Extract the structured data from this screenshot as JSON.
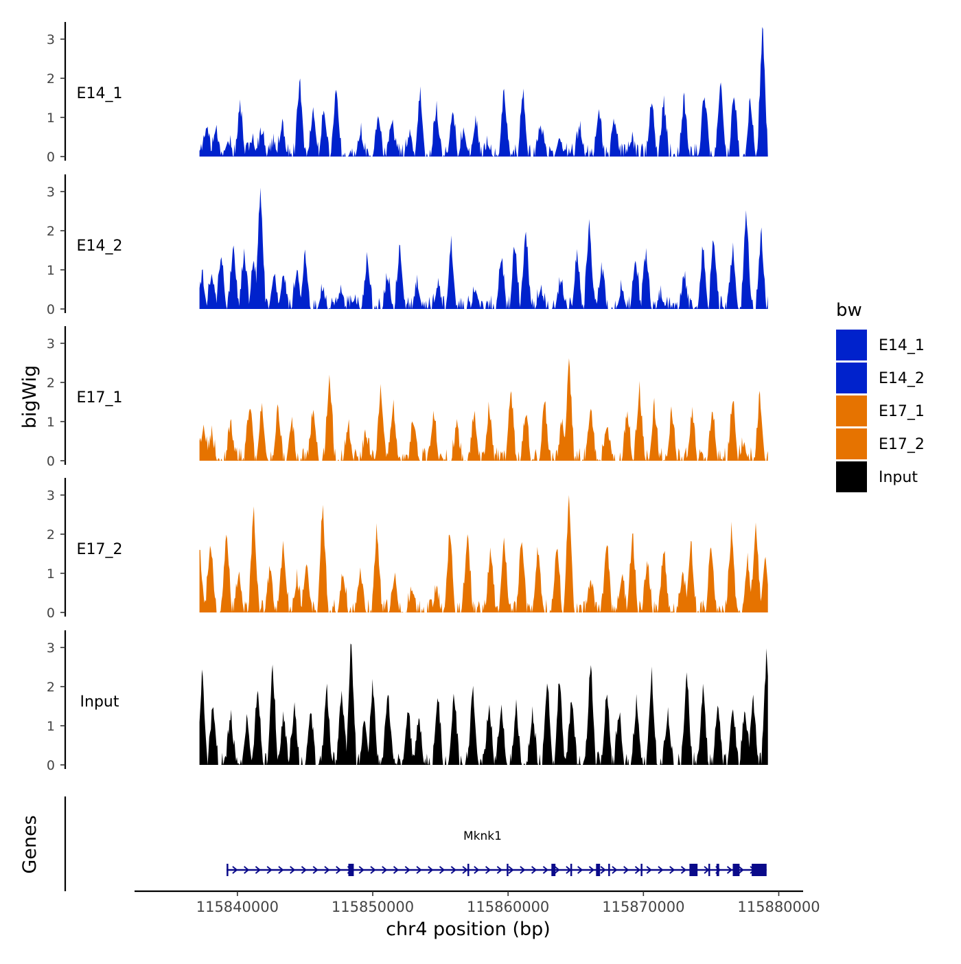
{
  "chart_data": {
    "type": "area",
    "chromosome": "chr4",
    "xlabel": "chr4 position (bp)",
    "ylabel": "bigWig",
    "genes_label": "Genes",
    "xlim": [
      115832400,
      115881800
    ],
    "data_range": [
      115837200,
      115879200
    ],
    "x_ticks": [
      115840000,
      115850000,
      115860000,
      115870000,
      115880000
    ],
    "x_tick_labels": [
      "115840000",
      "115850000",
      "115860000",
      "115870000",
      "115880000"
    ],
    "ylim": [
      0,
      3.4
    ],
    "y_ticks": [
      0,
      1,
      2,
      3
    ],
    "y_tick_labels": [
      "0",
      "1",
      "2",
      "3"
    ],
    "legend": {
      "title": "bw",
      "position": "right",
      "entries": [
        {
          "label": "E14_1",
          "color": "#0022cc"
        },
        {
          "label": "E14_2",
          "color": "#0022cc"
        },
        {
          "label": "E17_1",
          "color": "#e67300"
        },
        {
          "label": "E17_2",
          "color": "#e67300"
        },
        {
          "label": "Input",
          "color": "#000000"
        }
      ]
    },
    "series": [
      {
        "name": "E14_1",
        "color": "#0022cc",
        "peaks": [
          [
            115837300,
            0.2
          ],
          [
            115837700,
            0.7
          ],
          [
            115838400,
            0.7
          ],
          [
            115839300,
            0.4
          ],
          [
            115840200,
            1.2
          ],
          [
            115841100,
            0.4
          ],
          [
            115841800,
            0.6
          ],
          [
            115842700,
            0.3
          ],
          [
            115843300,
            0.8
          ],
          [
            115844600,
            1.9
          ],
          [
            115845600,
            1.2
          ],
          [
            115846400,
            1.2
          ],
          [
            115847300,
            1.8
          ],
          [
            115849100,
            0.6
          ],
          [
            115850400,
            1.0
          ],
          [
            115851400,
            0.9
          ],
          [
            115852700,
            0.5
          ],
          [
            115853500,
            1.6
          ],
          [
            115854700,
            1.2
          ],
          [
            115855900,
            1.2
          ],
          [
            115856700,
            0.6
          ],
          [
            115857600,
            0.9
          ],
          [
            115858500,
            0.3
          ],
          [
            115859700,
            1.7
          ],
          [
            115861100,
            1.6
          ],
          [
            115862400,
            0.8
          ],
          [
            115863800,
            0.5
          ],
          [
            115865300,
            0.7
          ],
          [
            115866700,
            1.2
          ],
          [
            115867900,
            0.9
          ],
          [
            115869100,
            0.4
          ],
          [
            115870600,
            1.4
          ],
          [
            115871500,
            1.3
          ],
          [
            115873000,
            1.4
          ],
          [
            115874500,
            1.6
          ],
          [
            115875700,
            2.0
          ],
          [
            115876700,
            1.6
          ],
          [
            115877900,
            1.4
          ],
          [
            115878800,
            3.3
          ]
        ]
      },
      {
        "name": "E14_2",
        "color": "#0022cc",
        "peaks": [
          [
            115837400,
            0.8
          ],
          [
            115838100,
            0.9
          ],
          [
            115838800,
            1.4
          ],
          [
            115839700,
            1.6
          ],
          [
            115840500,
            1.4
          ],
          [
            115841200,
            1.2
          ],
          [
            115841700,
            3.1
          ],
          [
            115842700,
            0.9
          ],
          [
            115843400,
            0.9
          ],
          [
            115844400,
            1.0
          ],
          [
            115845000,
            1.4
          ],
          [
            115846300,
            0.5
          ],
          [
            115847600,
            0.4
          ],
          [
            115848600,
            0.2
          ],
          [
            115849600,
            1.3
          ],
          [
            115851100,
            0.8
          ],
          [
            115852000,
            1.6
          ],
          [
            115853300,
            0.6
          ],
          [
            115854800,
            0.5
          ],
          [
            115855800,
            1.6
          ],
          [
            115857600,
            0.5
          ],
          [
            115859500,
            1.3
          ],
          [
            115860500,
            1.6
          ],
          [
            115861300,
            2.0
          ],
          [
            115862400,
            0.5
          ],
          [
            115863900,
            0.7
          ],
          [
            115865100,
            1.4
          ],
          [
            115866000,
            2.2
          ],
          [
            115866900,
            1.0
          ],
          [
            115868400,
            0.5
          ],
          [
            115869400,
            1.3
          ],
          [
            115870200,
            1.4
          ],
          [
            115871300,
            0.3
          ],
          [
            115873000,
            0.8
          ],
          [
            115874400,
            1.5
          ],
          [
            115875200,
            1.8
          ],
          [
            115876600,
            1.5
          ],
          [
            115877600,
            2.4
          ],
          [
            115878700,
            1.9
          ]
        ]
      },
      {
        "name": "E17_1",
        "color": "#e67300",
        "peaks": [
          [
            115837500,
            0.9
          ],
          [
            115838100,
            0.6
          ],
          [
            115839500,
            0.9
          ],
          [
            115840900,
            1.4
          ],
          [
            115841800,
            1.4
          ],
          [
            115843000,
            1.3
          ],
          [
            115844000,
            1.0
          ],
          [
            115845600,
            1.3
          ],
          [
            115846800,
            2.2
          ],
          [
            115848200,
            0.8
          ],
          [
            115849500,
            0.6
          ],
          [
            115850600,
            1.8
          ],
          [
            115851500,
            1.4
          ],
          [
            115853000,
            1.0
          ],
          [
            115854500,
            1.2
          ],
          [
            115856200,
            0.8
          ],
          [
            115857500,
            1.2
          ],
          [
            115858600,
            1.3
          ],
          [
            115860200,
            1.8
          ],
          [
            115861300,
            1.2
          ],
          [
            115862700,
            1.4
          ],
          [
            115864000,
            1.0
          ],
          [
            115864500,
            2.5
          ],
          [
            115866100,
            1.4
          ],
          [
            115867300,
            0.9
          ],
          [
            115868800,
            1.2
          ],
          [
            115869700,
            1.8
          ],
          [
            115870800,
            1.3
          ],
          [
            115872100,
            1.2
          ],
          [
            115873600,
            1.2
          ],
          [
            115875100,
            1.3
          ],
          [
            115876600,
            1.6
          ],
          [
            115877400,
            0.4
          ],
          [
            115878600,
            1.6
          ]
        ]
      },
      {
        "name": "E17_2",
        "color": "#e67300",
        "peaks": [
          [
            115837200,
            1.6
          ],
          [
            115838000,
            1.8
          ],
          [
            115839200,
            2.1
          ],
          [
            115840100,
            1.0
          ],
          [
            115841200,
            2.6
          ],
          [
            115842400,
            1.0
          ],
          [
            115843400,
            1.7
          ],
          [
            115844400,
            0.8
          ],
          [
            115845100,
            1.3
          ],
          [
            115846300,
            2.7
          ],
          [
            115847800,
            1.0
          ],
          [
            115849100,
            1.0
          ],
          [
            115850300,
            2.1
          ],
          [
            115851600,
            0.9
          ],
          [
            115852900,
            0.6
          ],
          [
            115854700,
            0.5
          ],
          [
            115855700,
            2.1
          ],
          [
            115857000,
            2.0
          ],
          [
            115858700,
            1.6
          ],
          [
            115859700,
            1.9
          ],
          [
            115861000,
            1.8
          ],
          [
            115862200,
            1.5
          ],
          [
            115863600,
            1.6
          ],
          [
            115864500,
            3.0
          ],
          [
            115866100,
            0.8
          ],
          [
            115867300,
            1.8
          ],
          [
            115868400,
            0.9
          ],
          [
            115869200,
            1.9
          ],
          [
            115870300,
            1.2
          ],
          [
            115871500,
            1.6
          ],
          [
            115872900,
            1.0
          ],
          [
            115873500,
            1.8
          ],
          [
            115875000,
            1.6
          ],
          [
            115876500,
            2.0
          ],
          [
            115877700,
            1.3
          ],
          [
            115878300,
            2.3
          ],
          [
            115879000,
            1.5
          ]
        ]
      },
      {
        "name": "Input",
        "color": "#000000",
        "peaks": [
          [
            115837400,
            2.3
          ],
          [
            115838200,
            1.5
          ],
          [
            115839500,
            1.2
          ],
          [
            115840700,
            1.1
          ],
          [
            115841500,
            2.0
          ],
          [
            115842600,
            2.5
          ],
          [
            115843400,
            1.2
          ],
          [
            115844200,
            1.4
          ],
          [
            115845400,
            1.4
          ],
          [
            115846600,
            1.9
          ],
          [
            115847700,
            1.9
          ],
          [
            115848400,
            3.2
          ],
          [
            115849400,
            1.2
          ],
          [
            115850000,
            2.0
          ],
          [
            115851100,
            1.8
          ],
          [
            115852600,
            1.4
          ],
          [
            115853400,
            1.2
          ],
          [
            115854800,
            1.8
          ],
          [
            115856000,
            1.8
          ],
          [
            115857400,
            1.9
          ],
          [
            115858600,
            1.5
          ],
          [
            115859500,
            1.5
          ],
          [
            115860600,
            1.4
          ],
          [
            115861800,
            1.3
          ],
          [
            115862900,
            2.2
          ],
          [
            115863800,
            2.2
          ],
          [
            115864700,
            1.7
          ],
          [
            115866100,
            2.6
          ],
          [
            115867300,
            1.9
          ],
          [
            115868200,
            1.3
          ],
          [
            115869500,
            1.6
          ],
          [
            115870600,
            2.3
          ],
          [
            115871800,
            1.3
          ],
          [
            115873200,
            2.3
          ],
          [
            115874400,
            1.9
          ],
          [
            115875500,
            1.6
          ],
          [
            115876600,
            1.5
          ],
          [
            115877500,
            1.4
          ],
          [
            115878100,
            1.7
          ],
          [
            115879100,
            2.8
          ]
        ]
      }
    ],
    "gene": {
      "name": "Mknk1",
      "strand": "+",
      "start": 115839200,
      "end": 115879100,
      "exons": [
        [
          115839200,
          115839300
        ],
        [
          115848200,
          115848600
        ],
        [
          115857000,
          115857050
        ],
        [
          115859900,
          115859950
        ],
        [
          115863200,
          115863500
        ],
        [
          115864600,
          115864650
        ],
        [
          115866500,
          115866800
        ],
        [
          115867400,
          115867450
        ],
        [
          115869800,
          115869850
        ],
        [
          115873400,
          115874000
        ],
        [
          115874800,
          115874900
        ],
        [
          115875400,
          115875600
        ],
        [
          115876600,
          115877100
        ],
        [
          115878000,
          115879100
        ]
      ]
    }
  }
}
